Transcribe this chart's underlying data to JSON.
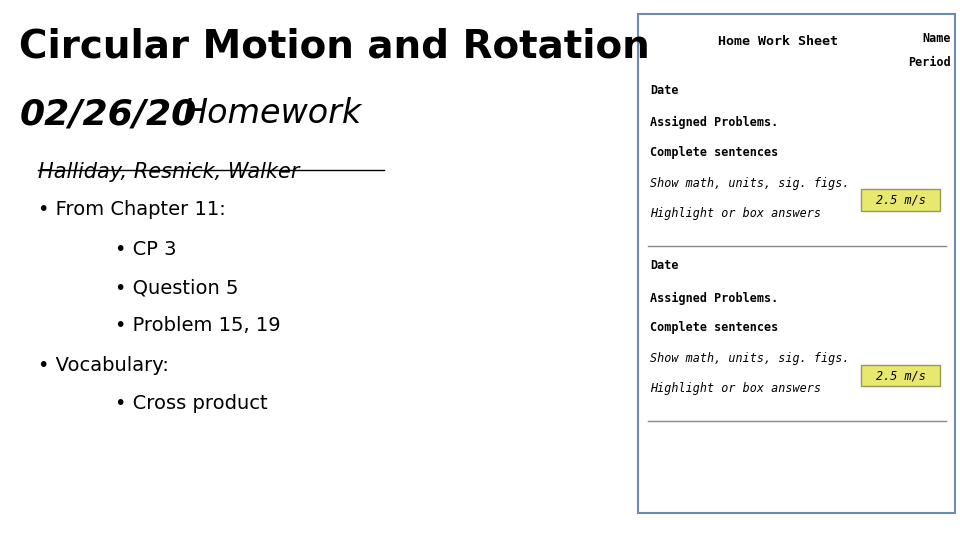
{
  "title_line1": "Circular Motion and Rotation",
  "title_line2_bold": "02/26/20",
  "title_line2_italic": "Homework",
  "subtitle_underline": "Halliday, Resnick, Walker",
  "bullet1": "From Chapter 11:",
  "sub_bullet1": "CP 3",
  "sub_bullet2": "Question 5",
  "sub_bullet3": "Problem 15, 19",
  "bullet2": "Vocabulary:",
  "sub_bullet4": "Cross product",
  "hw_header1": "Home Work Sheet",
  "hw_header2_name": "Name",
  "hw_header2_period": "Period",
  "hw_date": "Date",
  "hw_assigned": "Assigned Problems.",
  "hw_complete": "Complete sentences",
  "hw_show": "Show math, units, sig. figs.",
  "hw_highlight_pre": "Highlight or box answers",
  "hw_highlight_box": "2.5 m/s",
  "bg_color": "#ffffff",
  "box_border_color": "#6b8cae",
  "box_bg_color": "#ffffff",
  "highlight_color": "#e8e870",
  "text_color": "#000000"
}
